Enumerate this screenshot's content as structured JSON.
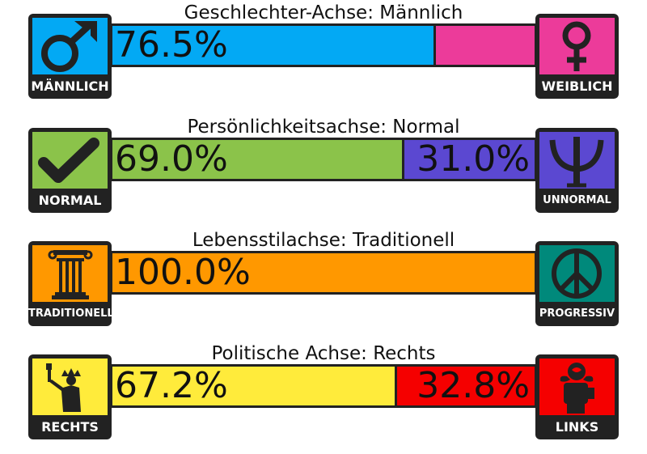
{
  "axes": [
    {
      "title": "Geschlechter-Achse: Männlich",
      "left_label": "MÄNNLICH",
      "right_label": "WEIBLICH",
      "left_icon": "male-symbol-icon",
      "right_icon": "female-symbol-icon",
      "left_color": "#03A9F4",
      "right_color": "#EC3B9A",
      "left_value": 76.5,
      "right_value": 23.5,
      "left_text": "76.5%",
      "right_text": ""
    },
    {
      "title": "Persönlichkeitsachse: Normal",
      "left_label": "NORMAL",
      "right_label": "UNNORMAL",
      "left_icon": "checkmark-icon",
      "right_icon": "psi-icon",
      "left_color": "#8BC34A",
      "right_color": "#5B48D1",
      "left_value": 69.0,
      "right_value": 31.0,
      "left_text": "69.0%",
      "right_text": "31.0%"
    },
    {
      "title": "Lebensstilachse: Traditionell",
      "left_label": "TRADITIONELL",
      "right_label": "PROGRESSIV",
      "left_icon": "column-icon",
      "right_icon": "peace-icon",
      "left_color": "#FF9800",
      "right_color": "#00897B",
      "left_value": 100.0,
      "right_value": 0.0,
      "left_text": "100.0%",
      "right_text": ""
    },
    {
      "title": "Politische Achse: Rechts",
      "left_label": "RECHTS",
      "right_label": "LINKS",
      "left_icon": "statue-of-liberty-icon",
      "right_icon": "fist-rose-icon",
      "left_color": "#FFEB3B",
      "right_color": "#F50000",
      "left_value": 67.2,
      "right_value": 32.8,
      "left_text": "67.2%",
      "right_text": "32.8%"
    }
  ]
}
